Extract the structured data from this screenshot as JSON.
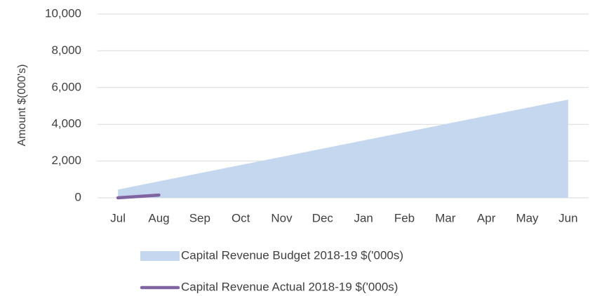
{
  "chart_data": {
    "type": "area",
    "y_label": "Amount $(000's)",
    "categories": [
      "Jul",
      "Aug",
      "Sep",
      "Oct",
      "Nov",
      "Dec",
      "Jan",
      "Feb",
      "Mar",
      "Apr",
      "May",
      "Jun"
    ],
    "series": [
      {
        "name": "Capital Revenue Budget 2018-19 $('000s)",
        "color": "#c5d7ef",
        "type": "area",
        "values": [
          450,
          895,
          1340,
          1785,
          2230,
          2675,
          3120,
          3565,
          4010,
          4455,
          4900,
          5345
        ]
      },
      {
        "name": "Capital Revenue Actual 2018-19 $('000s)",
        "color": "#8064a2",
        "type": "line",
        "values": [
          0,
          150,
          null,
          null,
          null,
          null,
          null,
          null,
          null,
          null,
          null,
          null
        ]
      }
    ],
    "ylim": [
      0,
      10000
    ],
    "yticks": [
      0,
      {
        "value": 2000,
        "label": "2,000"
      },
      {
        "value": 4000,
        "label": "4,000"
      },
      {
        "value": 6000,
        "label": "6,000"
      },
      {
        "value": 8000,
        "label": "8,000"
      },
      {
        "value": 10000,
        "label": "10,000"
      }
    ],
    "grid": true,
    "legend": "bottom"
  }
}
